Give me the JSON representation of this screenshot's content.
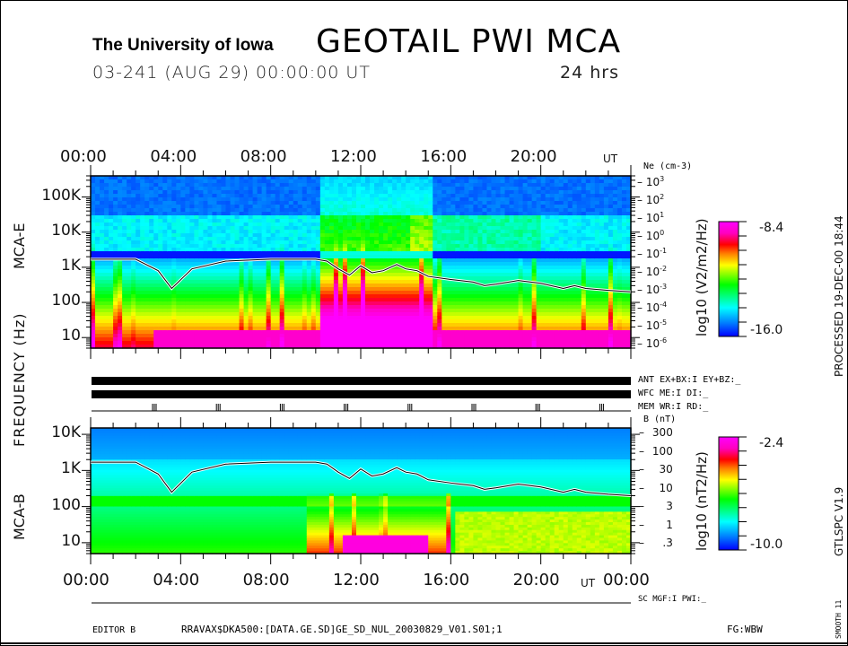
{
  "header": {
    "institution": "The University of Iowa",
    "title": "GEOTAIL  PWI  MCA",
    "date_line": "03-241 (AUG 29) 00:00:00 UT",
    "duration": "24 hrs"
  },
  "axis": {
    "y_label": "FREQUENCY (Hz)",
    "time_ticks": [
      "00:00",
      "04:00",
      "08:00",
      "12:00",
      "16:00",
      "20:00"
    ],
    "time_ticks_bottom": [
      "00:00",
      "04:00",
      "08:00",
      "12:00",
      "16:00",
      "20:00",
      "00:00"
    ],
    "ut_label": "UT"
  },
  "side_text": {
    "processed": "PROCESSED 19-DEC-00   18:44",
    "version": "GTLSPC    V1.9",
    "smooth": "SMOOTH 11"
  },
  "status_lines": {
    "ant": "ANT EX+BX:I EY+BZ:_",
    "wfc": "WFC ME:I    DI:_",
    "mem": "MEM WR:I    RD:_",
    "sc": "SC MGF:I   PWI:_"
  },
  "footer": {
    "editor": "EDITOR B",
    "path": "RRAVAX$DKA500:[DATA.GE.SD]GE_SD_NUL_20030829_V01.S01;1",
    "fg": "FG:WBW"
  },
  "chart_data": [
    {
      "type": "heatmap",
      "name": "MCA-E",
      "title": "MCA-E",
      "xlabel": "UT",
      "ylabel": "FREQUENCY (Hz)",
      "x_range_hours": [
        0,
        24
      ],
      "y_scale": "log",
      "y_range_hz": [
        5,
        400000
      ],
      "y_ticks": [
        "10",
        "100",
        "1K",
        "10K",
        "100K"
      ],
      "right_axis": {
        "label": "Ne (cm-3)",
        "ticks": [
          "10^3",
          "10^2",
          "10^1",
          "10^0",
          "10^-1",
          "10^-2",
          "10^-3",
          "10^-4",
          "10^-5",
          "10^-6"
        ]
      },
      "colorbar": {
        "label": "log10 (V2/m2/Hz)",
        "max": "-8.4",
        "min": "-16.0",
        "max_value": -8.4,
        "min_value": -16.0
      },
      "overlay_line": {
        "name": "electron density / plasma frequency trace",
        "points_hours_hz": [
          [
            0,
            1700
          ],
          [
            2,
            1700
          ],
          [
            3,
            800
          ],
          [
            3.6,
            250
          ],
          [
            4.5,
            900
          ],
          [
            6,
            1500
          ],
          [
            8,
            1700
          ],
          [
            10,
            1700
          ],
          [
            10.5,
            1500
          ],
          [
            11,
            900
          ],
          [
            11.5,
            600
          ],
          [
            12,
            1100
          ],
          [
            12.5,
            700
          ],
          [
            13,
            800
          ],
          [
            13.6,
            1200
          ],
          [
            14,
            900
          ],
          [
            14.5,
            800
          ],
          [
            15,
            550
          ],
          [
            16,
            450
          ],
          [
            17,
            380
          ],
          [
            17.5,
            300
          ],
          [
            18,
            330
          ],
          [
            19,
            420
          ],
          [
            20,
            350
          ],
          [
            21,
            250
          ],
          [
            21.5,
            300
          ],
          [
            22,
            250
          ],
          [
            23,
            220
          ],
          [
            24,
            200
          ]
        ]
      }
    },
    {
      "type": "heatmap",
      "name": "MCA-B",
      "title": "MCA-B",
      "xlabel": "UT",
      "ylabel": "FREQUENCY (Hz)",
      "x_range_hours": [
        0,
        24
      ],
      "y_scale": "log",
      "y_range_hz": [
        5,
        15000
      ],
      "y_ticks": [
        "10",
        "100",
        "1K",
        "10K"
      ],
      "right_axis": {
        "label": "B (nT)",
        "ticks": [
          "300",
          "100",
          "30",
          "10",
          "3",
          "1",
          ".3"
        ]
      },
      "colorbar": {
        "label": "log10 (nT2/Hz)",
        "max": "-2.4",
        "min": "-10.0",
        "max_value": -2.4,
        "min_value": -10.0
      },
      "overlay_line": {
        "name": "magnetic field magnitude / electron cyclotron trace",
        "points_hours_hz": [
          [
            0,
            1700
          ],
          [
            2,
            1700
          ],
          [
            3,
            800
          ],
          [
            3.6,
            250
          ],
          [
            4.5,
            900
          ],
          [
            6,
            1500
          ],
          [
            8,
            1700
          ],
          [
            10,
            1700
          ],
          [
            10.5,
            1500
          ],
          [
            11,
            900
          ],
          [
            11.5,
            600
          ],
          [
            12,
            1100
          ],
          [
            12.5,
            700
          ],
          [
            13,
            800
          ],
          [
            13.6,
            1200
          ],
          [
            14,
            900
          ],
          [
            14.5,
            800
          ],
          [
            15,
            550
          ],
          [
            16,
            450
          ],
          [
            17,
            380
          ],
          [
            17.5,
            300
          ],
          [
            18,
            330
          ],
          [
            19,
            420
          ],
          [
            20,
            350
          ],
          [
            21,
            250
          ],
          [
            21.5,
            300
          ],
          [
            22,
            250
          ],
          [
            23,
            220
          ],
          [
            24,
            200
          ]
        ]
      }
    }
  ],
  "colors": {
    "scale": [
      "#0000ff",
      "#0080ff",
      "#00ffff",
      "#00ff00",
      "#ffff00",
      "#ff8000",
      "#ff0000",
      "#ff00c0",
      "#ff00ff"
    ]
  }
}
